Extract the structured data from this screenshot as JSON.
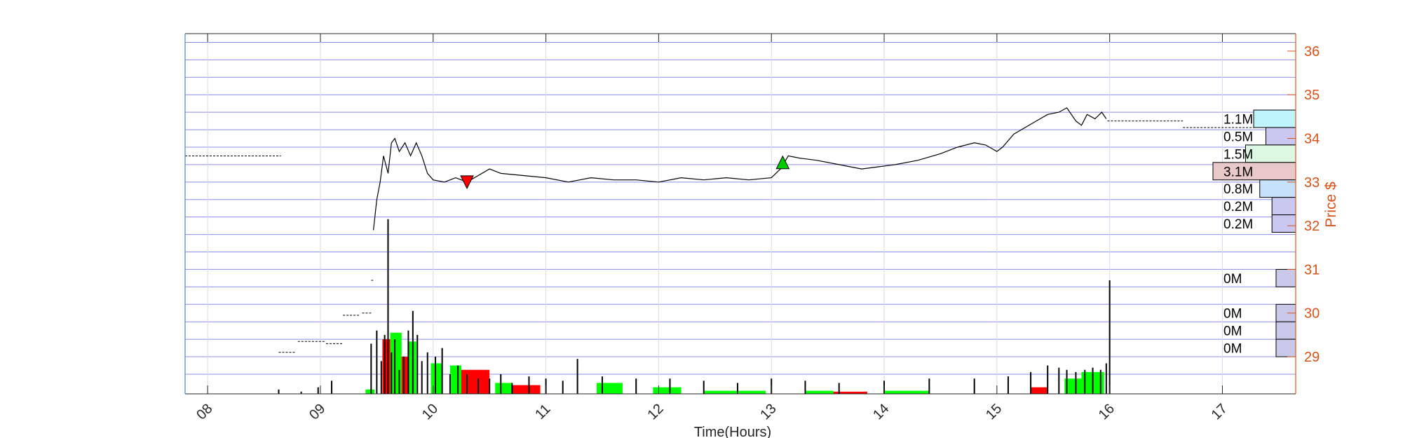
{
  "chart_data": {
    "type": "line",
    "xlabel": "Time(Hours)",
    "ylabel": "Price $",
    "xlim": [
      7.8,
      17.65
    ],
    "ylim": [
      28.15,
      36.4
    ],
    "x_ticks": [
      8,
      9,
      10,
      11,
      12,
      13,
      14,
      15,
      16,
      17
    ],
    "x_tick_labels": [
      "08",
      "09",
      "10",
      "11",
      "12",
      "13",
      "14",
      "15",
      "16",
      "17"
    ],
    "y_ticks": [
      29,
      30,
      31,
      32,
      33,
      34,
      35,
      36
    ],
    "y_tick_labels": [
      "29",
      "30",
      "31",
      "32",
      "33",
      "34",
      "35",
      "36"
    ],
    "grid": true,
    "price_axis_color": "#D95319",
    "price_series": {
      "name": "",
      "color": "#000000",
      "x": [
        9.47,
        9.5,
        9.53,
        9.56,
        9.6,
        9.63,
        9.66,
        9.7,
        9.75,
        9.8,
        9.85,
        9.9,
        9.95,
        10.0,
        10.1,
        10.2,
        10.3,
        10.4,
        10.5,
        10.6,
        10.8,
        11.0,
        11.2,
        11.3,
        11.4,
        11.6,
        11.8,
        12.0,
        12.2,
        12.4,
        12.6,
        12.8,
        13.0,
        13.08,
        13.15,
        13.25,
        13.4,
        13.6,
        13.8,
        13.95,
        14.1,
        14.3,
        14.5,
        14.65,
        14.8,
        14.9,
        15.0,
        15.05,
        15.15,
        15.25,
        15.35,
        15.45,
        15.55,
        15.62,
        15.7,
        15.75,
        15.8,
        15.87,
        15.93,
        15.97
      ],
      "y": [
        31.9,
        32.6,
        33.0,
        33.6,
        33.2,
        33.9,
        34.0,
        33.7,
        33.9,
        33.6,
        33.9,
        33.6,
        33.2,
        33.05,
        33.0,
        33.1,
        33.0,
        33.15,
        33.3,
        33.2,
        33.15,
        33.1,
        33.0,
        33.05,
        33.1,
        33.05,
        33.05,
        33.0,
        33.1,
        33.05,
        33.1,
        33.05,
        33.1,
        33.3,
        33.6,
        33.55,
        33.5,
        33.4,
        33.3,
        33.35,
        33.4,
        33.5,
        33.65,
        33.8,
        33.9,
        33.85,
        33.7,
        33.8,
        34.1,
        34.25,
        34.4,
        34.55,
        34.6,
        34.7,
        34.4,
        34.3,
        34.55,
        34.45,
        34.6,
        34.45
      ]
    },
    "premarket_segments": [
      {
        "x": [
          7.8,
          8.65
        ],
        "y": 33.6
      },
      {
        "x": [
          8.63,
          8.78
        ],
        "y": 29.1
      },
      {
        "x": [
          8.8,
          9.05
        ],
        "y": 29.35
      },
      {
        "x": [
          9.05,
          9.2
        ],
        "y": 29.3
      },
      {
        "x": [
          9.2,
          9.35
        ],
        "y": 29.95
      },
      {
        "x": [
          9.37,
          9.45
        ],
        "y": 30.0
      },
      {
        "x": [
          9.45,
          9.48
        ],
        "y": 30.75
      }
    ],
    "afterhours_segments": [
      {
        "x": [
          15.98,
          16.65
        ],
        "y": 34.4
      },
      {
        "x": [
          16.65,
          17.3
        ],
        "y": 34.25
      }
    ],
    "trade_markers": [
      {
        "type": "sell",
        "x": 10.3,
        "y": 33.0,
        "color": "#FF0000"
      },
      {
        "type": "buy",
        "x": 13.1,
        "y": 33.45,
        "color": "#00CC00"
      }
    ],
    "volume_bars": {
      "color": "#000000",
      "x": [
        8.63,
        8.83,
        8.98,
        9.1,
        9.45,
        9.5,
        9.54,
        9.57,
        9.6,
        9.63,
        9.66,
        9.7,
        9.74,
        9.78,
        9.82,
        9.86,
        9.9,
        9.95,
        10.02,
        10.08,
        10.15,
        10.22,
        10.3,
        10.4,
        10.5,
        10.6,
        10.7,
        10.85,
        11.0,
        11.15,
        11.28,
        11.5,
        11.8,
        12.1,
        12.4,
        12.7,
        13.0,
        13.3,
        13.6,
        14.0,
        14.4,
        14.8,
        15.1,
        15.3,
        15.45,
        15.55,
        15.62,
        15.7,
        15.78,
        15.85,
        15.92,
        15.97,
        16.0
      ],
      "y": [
        28.25,
        28.2,
        28.3,
        28.45,
        29.3,
        29.6,
        28.9,
        29.5,
        32.15,
        29.1,
        29.4,
        28.7,
        29.0,
        29.6,
        30.05,
        29.5,
        28.9,
        29.1,
        29.0,
        29.2,
        28.6,
        28.8,
        28.6,
        28.5,
        28.5,
        28.6,
        28.4,
        28.55,
        28.5,
        28.45,
        28.95,
        28.55,
        28.5,
        28.5,
        28.45,
        28.4,
        28.5,
        28.45,
        28.4,
        28.45,
        28.5,
        28.5,
        28.55,
        28.65,
        28.8,
        28.75,
        28.7,
        28.65,
        28.7,
        28.75,
        28.7,
        28.85,
        30.75
      ]
    },
    "volume_blocks": [
      {
        "x": [
          9.4,
          9.48
        ],
        "top": 28.25,
        "color": "#00FF00"
      },
      {
        "x": [
          9.55,
          9.62
        ],
        "top": 29.4,
        "color": "#FF0000"
      },
      {
        "x": [
          9.62,
          9.72
        ],
        "top": 29.55,
        "color": "#00FF00"
      },
      {
        "x": [
          9.72,
          9.78
        ],
        "top": 29.0,
        "color": "#FF0000"
      },
      {
        "x": [
          9.78,
          9.85
        ],
        "top": 29.35,
        "color": "#00FF00"
      },
      {
        "x": [
          9.98,
          10.08
        ],
        "top": 28.85,
        "color": "#00FF00"
      },
      {
        "x": [
          10.15,
          10.25
        ],
        "top": 28.8,
        "color": "#00FF00"
      },
      {
        "x": [
          10.25,
          10.5
        ],
        "top": 28.7,
        "color": "#FF0000"
      },
      {
        "x": [
          10.55,
          10.7
        ],
        "top": 28.4,
        "color": "#00FF00"
      },
      {
        "x": [
          10.7,
          10.95
        ],
        "top": 28.35,
        "color": "#FF0000"
      },
      {
        "x": [
          11.45,
          11.68
        ],
        "top": 28.4,
        "color": "#00FF00"
      },
      {
        "x": [
          11.95,
          12.2
        ],
        "top": 28.3,
        "color": "#00FF00"
      },
      {
        "x": [
          12.4,
          12.95
        ],
        "top": 28.22,
        "color": "#00FF00"
      },
      {
        "x": [
          13.3,
          13.55
        ],
        "top": 28.22,
        "color": "#00FF00"
      },
      {
        "x": [
          13.55,
          13.85
        ],
        "top": 28.2,
        "color": "#FF0000"
      },
      {
        "x": [
          14.0,
          14.4
        ],
        "top": 28.22,
        "color": "#00FF00"
      },
      {
        "x": [
          15.3,
          15.45
        ],
        "top": 28.3,
        "color": "#FF0000"
      },
      {
        "x": [
          15.6,
          15.75
        ],
        "top": 28.5,
        "color": "#00FF00"
      },
      {
        "x": [
          15.75,
          15.95
        ],
        "top": 28.65,
        "color": "#00FF00"
      }
    ],
    "volume_profile": [
      {
        "label": "1.1M",
        "y_low": 34.25,
        "y_high": 34.65,
        "value": 1.1,
        "color": "#BFF5FA"
      },
      {
        "label": "0.5M",
        "y_low": 33.85,
        "y_high": 34.25,
        "value": 0.5,
        "color": "#C8C8F0"
      },
      {
        "label": "1.5M",
        "y_low": 33.45,
        "y_high": 33.85,
        "value": 1.5,
        "color": "#DCF8E2"
      },
      {
        "label": "3.1M",
        "y_low": 33.05,
        "y_high": 33.45,
        "value": 3.1,
        "color": "#E8C8C8"
      },
      {
        "label": "0.8M",
        "y_low": 32.65,
        "y_high": 33.05,
        "value": 0.8,
        "color": "#C6E2FA"
      },
      {
        "label": "0.2M",
        "y_low": 32.25,
        "y_high": 32.65,
        "value": 0.2,
        "color": "#C8C8F0"
      },
      {
        "label": "0.2M",
        "y_low": 31.85,
        "y_high": 32.25,
        "value": 0.2,
        "color": "#C8C8F0"
      },
      {
        "label": "0M",
        "y_low": 30.6,
        "y_high": 31.0,
        "value": 0.0,
        "color": "#C8C8E8"
      },
      {
        "label": "0M",
        "y_low": 29.8,
        "y_high": 30.2,
        "value": 0.0,
        "color": "#C8C8E8"
      },
      {
        "label": "0M",
        "y_low": 29.4,
        "y_high": 29.8,
        "value": 0.0,
        "color": "#C8C8E8"
      },
      {
        "label": "0M",
        "y_low": 29.0,
        "y_high": 29.4,
        "value": 0.0,
        "color": "#C8C8E8"
      }
    ]
  }
}
